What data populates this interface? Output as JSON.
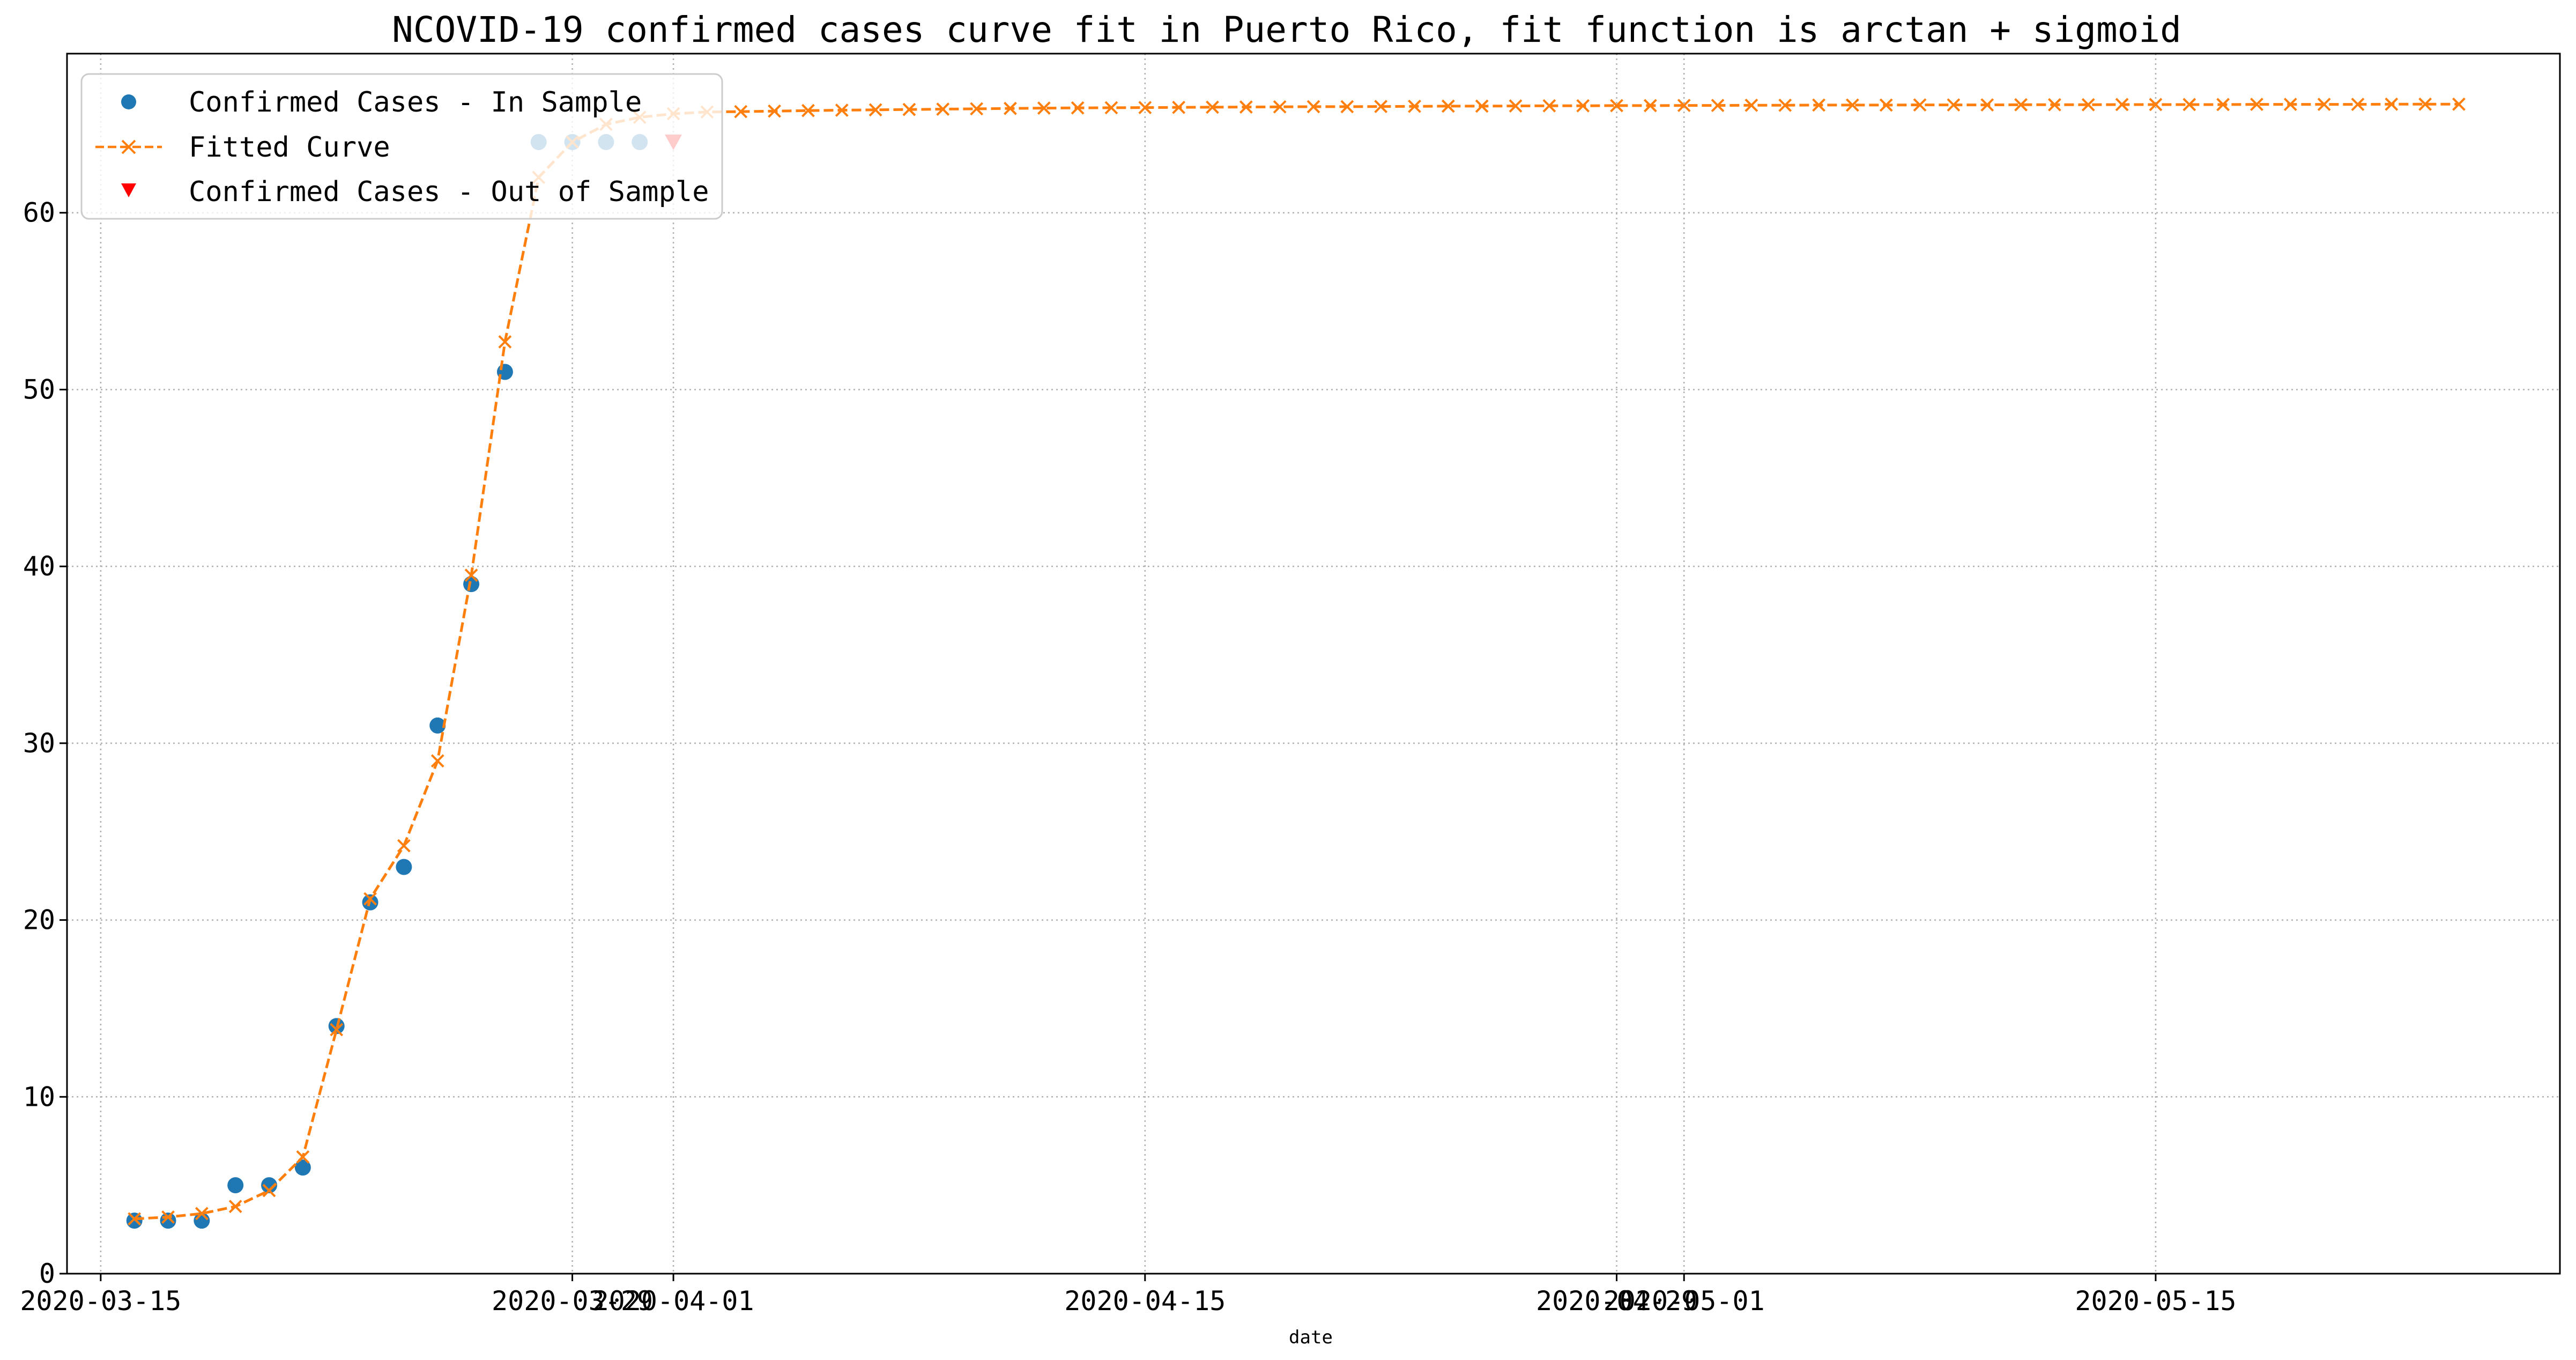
{
  "chart_data": {
    "type": "line",
    "title": "NCOVID-19 confirmed cases curve fit in Puerto Rico, fit function is arctan + sigmoid",
    "xlabel": "date",
    "ylabel": "",
    "grid": true,
    "legend_position": "upper left",
    "xlim": [
      "2020-03-14",
      "2020-05-27"
    ],
    "ylim": [
      0,
      69
    ],
    "x_ticks": [
      "2020-03-15",
      "2020-03-29",
      "2020-04-01",
      "2020-04-15",
      "2020-04-29",
      "2020-05-01",
      "2020-05-15"
    ],
    "y_ticks": [
      0,
      10,
      20,
      30,
      40,
      50,
      60
    ],
    "series": [
      {
        "name": "Confirmed Cases - In Sample",
        "marker": "circle",
        "color": "#1f77b4",
        "x": [
          "2020-03-16",
          "2020-03-17",
          "2020-03-18",
          "2020-03-19",
          "2020-03-20",
          "2020-03-21",
          "2020-03-22",
          "2020-03-23",
          "2020-03-24",
          "2020-03-25",
          "2020-03-26",
          "2020-03-27",
          "2020-03-28",
          "2020-03-29",
          "2020-03-30",
          "2020-03-31"
        ],
        "y": [
          3,
          3,
          3,
          5,
          5,
          6,
          14,
          21,
          23,
          31,
          39,
          51,
          64,
          64,
          64,
          64
        ]
      },
      {
        "name": "Fitted Curve",
        "marker": "x",
        "linestyle": "dashed",
        "color": "#ff7f0e",
        "x_start": "2020-03-16",
        "x_end": "2020-05-24",
        "y": [
          3.1,
          3.2,
          3.4,
          3.8,
          4.7,
          6.6,
          13.8,
          21.2,
          24.2,
          29.0,
          39.5,
          52.7,
          62.0,
          64.0,
          65.0,
          65.4,
          65.6,
          65.7,
          65.72,
          65.75,
          65.78,
          65.8,
          65.82,
          65.84,
          65.86,
          65.88,
          65.9,
          65.92,
          65.93,
          65.94,
          65.95,
          65.96,
          65.97,
          65.98,
          65.99,
          66.0,
          66.0,
          66.01,
          66.02,
          66.03,
          66.03,
          66.04,
          66.05,
          66.05,
          66.06,
          66.06,
          66.07,
          66.07,
          66.08,
          66.08,
          66.09,
          66.09,
          66.09,
          66.1,
          66.1,
          66.1,
          66.11,
          66.11,
          66.11,
          66.12,
          66.12,
          66.12,
          66.12,
          66.13,
          66.13,
          66.13,
          66.13,
          66.14,
          66.14,
          66.14
        ]
      },
      {
        "name": "Confirmed Cases - Out of Sample",
        "marker": "triangle-down",
        "color": "#ff0000",
        "x": [
          "2020-04-01"
        ],
        "y": [
          64
        ]
      }
    ]
  }
}
